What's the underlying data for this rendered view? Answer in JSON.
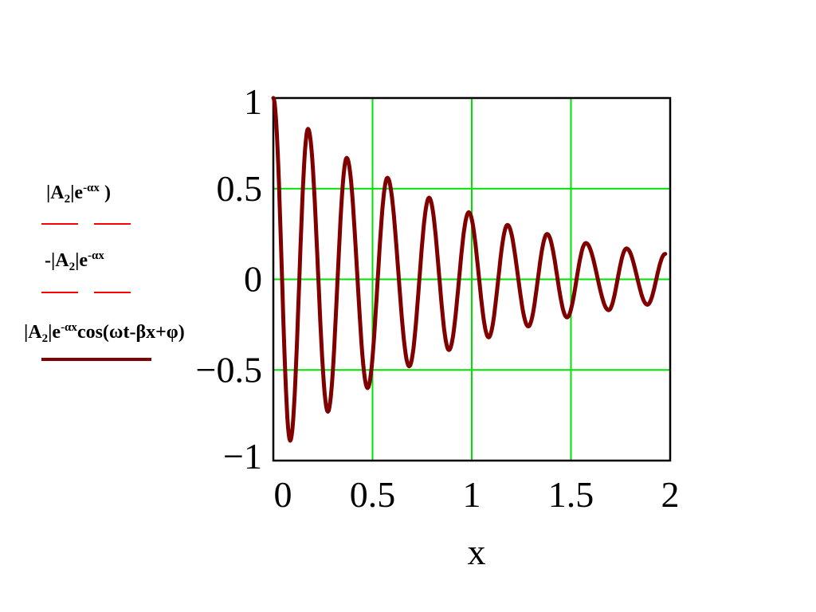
{
  "chart_data": {
    "type": "line",
    "xlabel": "x",
    "xlim": [
      0,
      2
    ],
    "ylim": [
      -1,
      1
    ],
    "x_ticks": [
      "0",
      "0.5",
      "1",
      "1.5",
      "2"
    ],
    "y_ticks": [
      "1",
      "0.5",
      "0",
      "−0.5",
      "−1"
    ],
    "grid": true,
    "legend_position": "left",
    "series": [
      {
        "name": "|A₂|e^(-αx)cos(ωt-βx+φ)",
        "color": "#800000",
        "style": "solid",
        "x": [
          0.0,
          0.085,
          0.175,
          0.275,
          0.37,
          0.475,
          0.575,
          0.685,
          0.785,
          0.885,
          0.985,
          1.085,
          1.18,
          1.285,
          1.38,
          1.48,
          1.575,
          1.69,
          1.78,
          1.885,
          1.975
        ],
        "y": [
          1.0,
          -0.89,
          0.83,
          -0.73,
          0.67,
          -0.6,
          0.56,
          -0.48,
          0.45,
          -0.39,
          0.37,
          -0.32,
          0.3,
          -0.26,
          0.25,
          -0.21,
          0.2,
          -0.17,
          0.17,
          -0.14,
          0.14
        ]
      }
    ]
  },
  "legend": {
    "entries": [
      {
        "label_parts": {
          "a": "|A",
          "sub": "2",
          "b": "|e",
          "sup": "-αx",
          "c": " )"
        },
        "color": "#ff0000",
        "style": "dash"
      },
      {
        "label_parts": {
          "a": "-|A",
          "sub": "2",
          "b": "|e",
          "sup": "-αx",
          "c": ""
        },
        "color": "#ff0000",
        "style": "dash"
      },
      {
        "label_parts": {
          "a": "|A",
          "sub": "2",
          "b": "|e",
          "sup": "-αx",
          "c": "cos(ωt-βx+φ)"
        },
        "color": "#800000",
        "style": "solid"
      }
    ]
  },
  "colors": {
    "grid": "#00e000",
    "frame": "#000000",
    "curve": "#800000",
    "envelope": "#ff0000"
  }
}
